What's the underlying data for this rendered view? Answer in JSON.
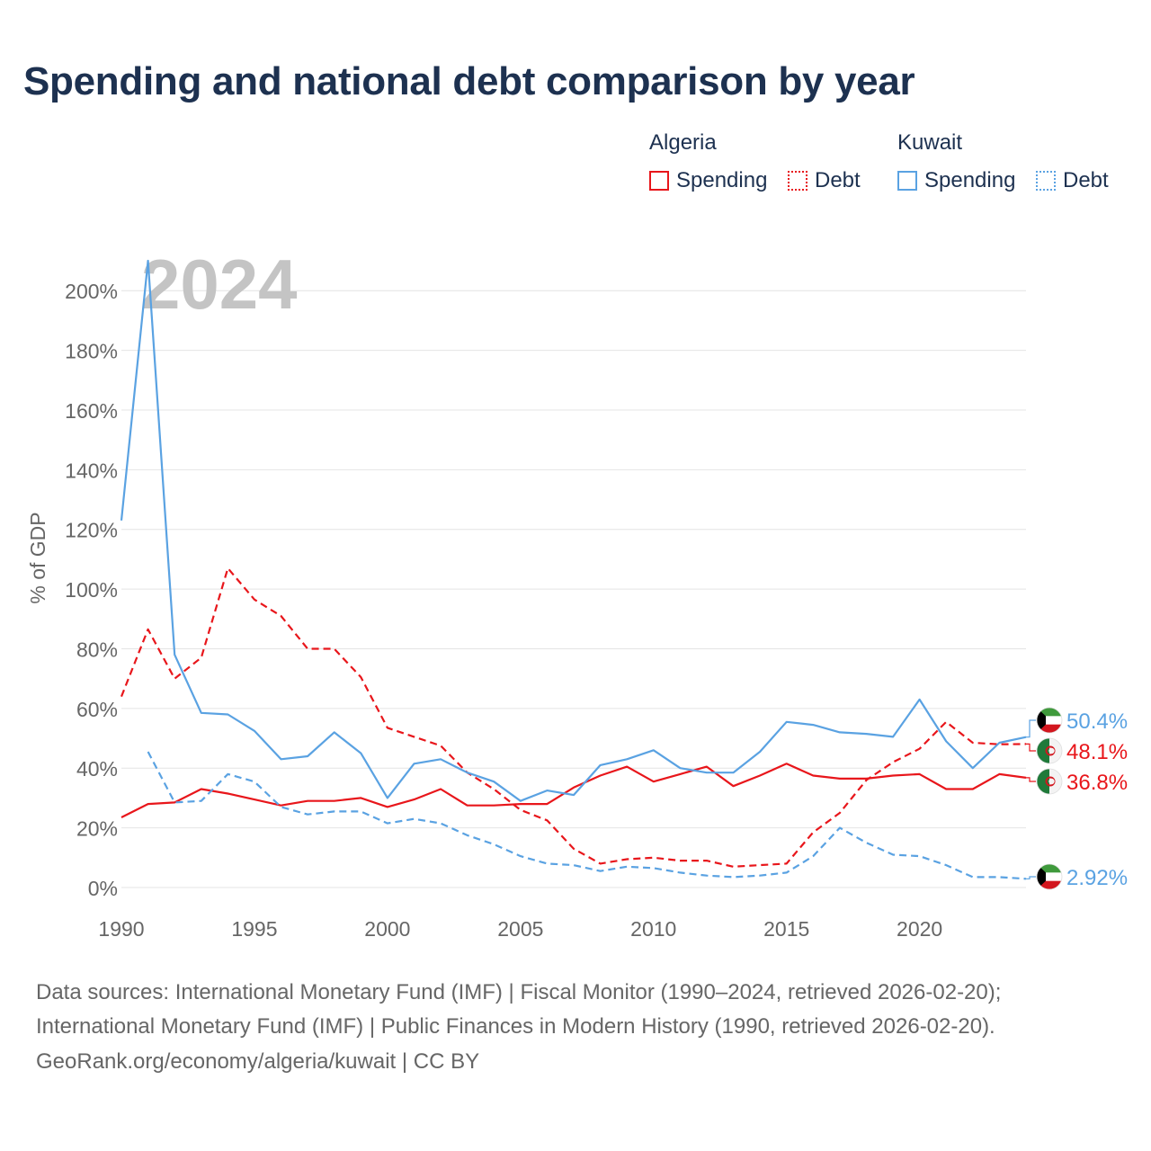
{
  "title": "Spending and national debt comparison by year",
  "legend": {
    "groups": [
      {
        "name": "Algeria",
        "color": "#e8161b",
        "items": [
          "Spending",
          "Debt"
        ]
      },
      {
        "name": "Kuwait",
        "color": "#5aa2e2",
        "items": [
          "Spending",
          "Debt"
        ]
      }
    ]
  },
  "footer": {
    "line1": "Data sources: International Monetary Fund (IMF) | Fiscal Monitor (1990–2024, retrieved 2026-02-20);",
    "line2": "International Monetary Fund (IMF) | Public Finances in Modern History (1990, retrieved 2026-02-20).",
    "line3": "GeoRank.org/economy/algeria/kuwait | CC BY"
  },
  "chart_data": {
    "type": "line",
    "ylabel": "% of GDP",
    "year_label": "2024",
    "xlim": [
      1990,
      2024
    ],
    "ylim": [
      0,
      210
    ],
    "x_ticks": [
      1990,
      1995,
      2000,
      2005,
      2010,
      2015,
      2020
    ],
    "y_ticks": [
      0,
      20,
      40,
      60,
      80,
      100,
      120,
      140,
      160,
      180,
      200
    ],
    "y_tick_labels": [
      "0%",
      "20%",
      "40%",
      "60%",
      "80%",
      "100%",
      "120%",
      "140%",
      "160%",
      "180%",
      "200%"
    ],
    "years": [
      1990,
      1991,
      1992,
      1993,
      1994,
      1995,
      1996,
      1997,
      1998,
      1999,
      2000,
      2001,
      2002,
      2003,
      2004,
      2005,
      2006,
      2007,
      2008,
      2009,
      2010,
      2011,
      2012,
      2013,
      2014,
      2015,
      2016,
      2017,
      2018,
      2019,
      2020,
      2021,
      2022,
      2023,
      2024
    ],
    "series": [
      {
        "name": "Algeria Spending",
        "country": "Algeria",
        "kind": "Spending",
        "color": "#e8161b",
        "dash": false,
        "values": [
          23.5,
          28,
          28.5,
          33,
          31.5,
          29.5,
          27.5,
          29,
          29,
          30,
          27,
          29.5,
          33,
          27.5,
          27.5,
          28,
          28,
          33.5,
          37.5,
          40.5,
          35.5,
          38,
          40.5,
          34,
          37.5,
          41.5,
          37.5,
          36.5,
          36.5,
          37.5,
          38,
          33,
          33,
          38,
          36.8
        ],
        "end_label": "36.8%"
      },
      {
        "name": "Algeria Debt",
        "country": "Algeria",
        "kind": "Debt",
        "color": "#e8161b",
        "dash": true,
        "values": [
          64,
          86.5,
          70,
          77,
          107,
          96.5,
          91,
          80,
          80,
          70.5,
          53.5,
          50.5,
          47.5,
          38.5,
          33,
          26,
          22.5,
          13,
          8,
          9.5,
          10,
          9,
          9,
          7,
          7.5,
          8,
          18.5,
          25,
          36,
          42,
          46.5,
          55.5,
          48.5,
          48,
          48.1
        ],
        "end_label": "48.1%"
      },
      {
        "name": "Kuwait Spending",
        "country": "Kuwait",
        "kind": "Spending",
        "color": "#5aa2e2",
        "dash": false,
        "values": [
          123,
          210,
          78,
          58.5,
          58,
          52.5,
          43,
          44,
          52,
          45,
          30,
          41.5,
          43,
          38.5,
          35.5,
          29,
          32.5,
          31,
          41,
          43,
          46,
          40,
          38.5,
          38.5,
          45.5,
          55.5,
          54.5,
          52,
          51.5,
          50.5,
          63,
          49,
          40,
          48.5,
          50.4
        ],
        "end_label": "50.4%"
      },
      {
        "name": "Kuwait Debt",
        "country": "Kuwait",
        "kind": "Debt",
        "color": "#5aa2e2",
        "dash": true,
        "values": [
          null,
          45.5,
          28.5,
          29,
          38,
          35.5,
          27,
          24.5,
          25.5,
          25.5,
          21.5,
          23,
          21.5,
          17.5,
          14.5,
          10.5,
          8,
          7.5,
          5.5,
          7,
          6.5,
          5,
          4,
          3.5,
          4,
          5,
          10.5,
          20,
          15,
          11,
          10.5,
          7.5,
          3.5,
          3.5,
          2.92
        ],
        "end_label": "2.92%"
      }
    ]
  }
}
